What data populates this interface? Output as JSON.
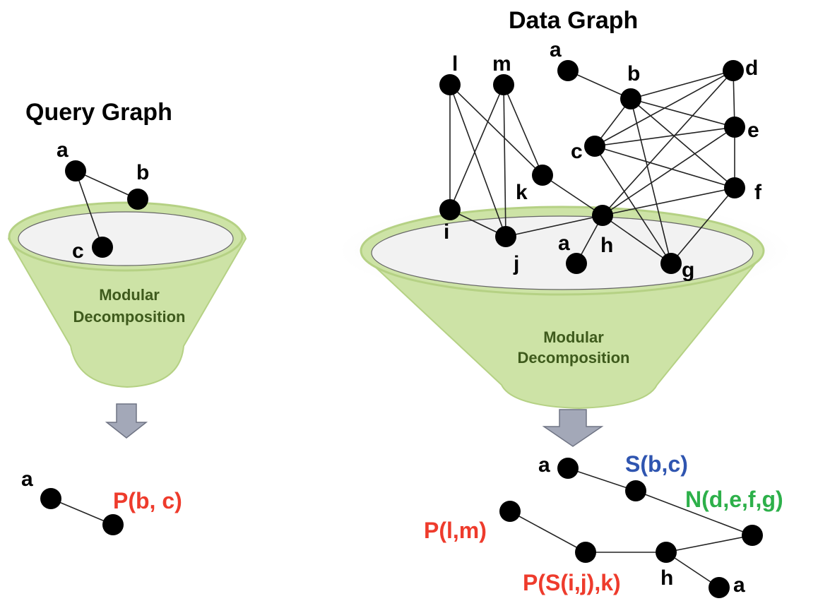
{
  "colors": {
    "funnel_fill": "#cde3a6",
    "funnel_rim": "#b5d184",
    "funnel_inner": "#f2f2f2",
    "arrow": "#a3a8b8",
    "red": "#ee3b2c",
    "blue": "#2f55b0",
    "green": "#2db04a"
  },
  "query": {
    "title": "Query Graph",
    "funnel_text_1": "Modular",
    "funnel_text_2": "Decomposition",
    "labels": {
      "a": "a",
      "b": "b",
      "c": "c"
    },
    "result": {
      "node_label": "a",
      "module_label": "P(b, c)"
    }
  },
  "data": {
    "title": "Data Graph",
    "funnel_text_1": "Modular",
    "funnel_text_2": "Decomposition",
    "labels": {
      "l": "l",
      "m": "m",
      "a": "a",
      "b": "b",
      "d": "d",
      "e": "e",
      "c": "c",
      "k": "k",
      "f": "f",
      "i": "i",
      "j": "j",
      "h": "h",
      "a2": "a",
      "g": "g"
    },
    "result": {
      "a_top": "a",
      "s_bc": "S(b,c)",
      "n_defg": "N(d,e,f,g)",
      "p_lm": "P(l,m)",
      "p_sijk": "P(S(i,j),k)",
      "h": "h",
      "a_bottom": "a"
    }
  }
}
